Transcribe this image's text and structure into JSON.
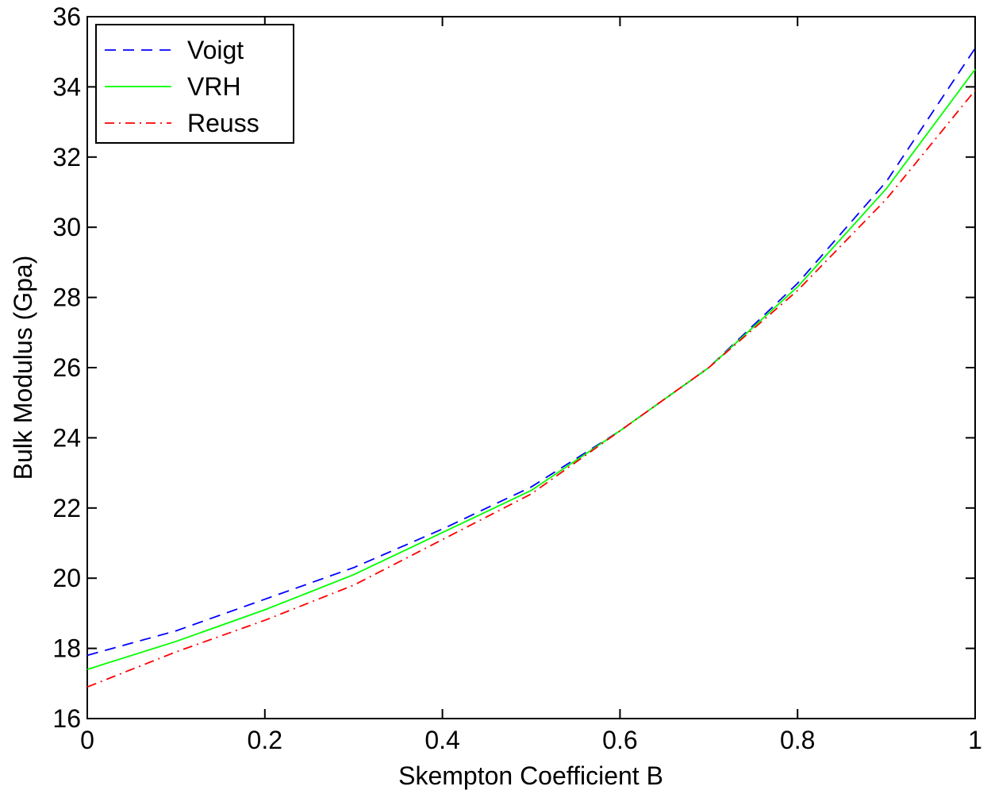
{
  "chart_data": {
    "type": "line",
    "title": "",
    "xlabel": "Skempton Coefficient B",
    "ylabel": "Bulk Modulus (Gpa)",
    "xlim": [
      0,
      1
    ],
    "ylim": [
      16,
      36
    ],
    "xticks": [
      0,
      0.2,
      0.4,
      0.6,
      0.8,
      1
    ],
    "xtick_labels": [
      "0",
      "0.2",
      "0.4",
      "0.6",
      "0.8",
      "1"
    ],
    "yticks": [
      16,
      18,
      20,
      22,
      24,
      26,
      28,
      30,
      32,
      34,
      36
    ],
    "ytick_labels": [
      "16",
      "18",
      "20",
      "22",
      "24",
      "26",
      "28",
      "30",
      "32",
      "34",
      "36"
    ],
    "grid": false,
    "legend_position": "top-left",
    "x": [
      0,
      0.1,
      0.2,
      0.3,
      0.4,
      0.5,
      0.6,
      0.7,
      0.8,
      0.9,
      1.0
    ],
    "series": [
      {
        "name": "Voigt",
        "color": "#0000ff",
        "style": "dashed",
        "values": [
          17.8,
          18.5,
          19.4,
          20.3,
          21.4,
          22.6,
          24.2,
          26.0,
          28.4,
          31.3,
          35.1
        ]
      },
      {
        "name": "VRH",
        "color": "#00ff00",
        "style": "solid",
        "values": [
          17.4,
          18.2,
          19.1,
          20.1,
          21.3,
          22.5,
          24.2,
          26.0,
          28.3,
          31.1,
          34.5
        ]
      },
      {
        "name": "Reuss",
        "color": "#ff0000",
        "style": "dash-dot",
        "values": [
          16.9,
          17.9,
          18.8,
          19.8,
          21.1,
          22.4,
          24.2,
          26.0,
          28.2,
          30.8,
          33.9
        ]
      }
    ]
  }
}
